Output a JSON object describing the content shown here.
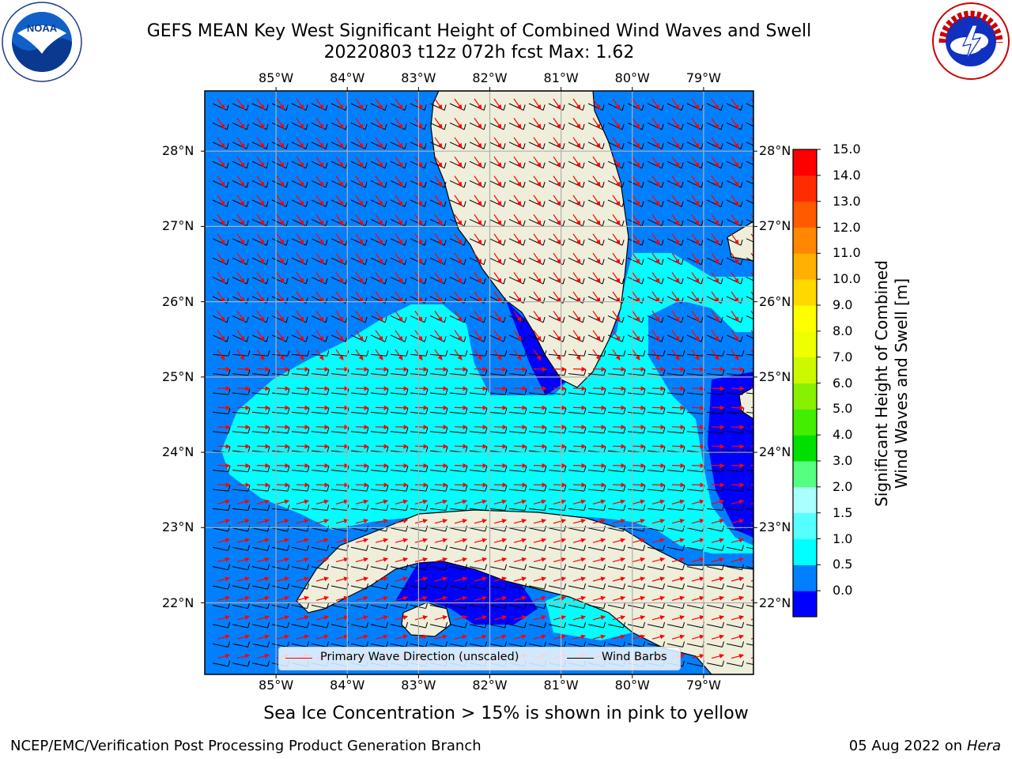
{
  "title": {
    "line1": "GEFS MEAN Key West Significant Height of Combined Wind Waves and Swell",
    "line2": "20220803 t12z 072h fcst   Max: 1.62"
  },
  "logos": {
    "noaa": {
      "text": "NOAA",
      "ring_text": "NATIONAL OCEANIC AND ATMOSPHERIC ADMINISTRATION · U.S. DEPARTMENT OF COMMERCE",
      "icon": "noaa-logo"
    },
    "nws": {
      "ring_text": "NATIONAL WEATHER SERVICE",
      "icon": "nws-logo"
    }
  },
  "map": {
    "lon_labels": [
      "85°W",
      "84°W",
      "83°W",
      "82°W",
      "81°W",
      "80°W",
      "79°W"
    ],
    "lat_labels": [
      "28°N",
      "27°N",
      "26°N",
      "25°N",
      "24°N",
      "23°N",
      "22°N"
    ],
    "lon_range": [
      -86.0,
      -78.3
    ],
    "lat_range": [
      21.05,
      28.8
    ],
    "colors": {
      "water_low": "#0000ff",
      "water_mid": "#0080ff",
      "water_high": "#00ffff",
      "land": "#efeedb",
      "wave_arrow": "#ff0000",
      "wind_barb": "#000000",
      "grid": "#b0b0b0"
    }
  },
  "colorbar": {
    "title_line1": "Significant Height of Combined",
    "title_line2": "Wind Waves and Swell [m]",
    "ticks": [
      "15.0",
      "14.0",
      "13.0",
      "12.0",
      "11.0",
      "10.0",
      "9.0",
      "8.0",
      "7.0",
      "6.0",
      "5.0",
      "4.0",
      "3.0",
      "2.0",
      "1.5",
      "1.0",
      "0.5",
      "0.0"
    ],
    "colors_bottom_to_top": [
      "#0000ff",
      "#0080ff",
      "#00ffff",
      "#55ffff",
      "#aaffff",
      "#55ff80",
      "#00e000",
      "#44ee00",
      "#88f000",
      "#ccf800",
      "#eeff00",
      "#ffff00",
      "#ffd800",
      "#ffb000",
      "#ff8800",
      "#ff5a00",
      "#ff2c00",
      "#ff0000"
    ]
  },
  "legend": {
    "items": [
      {
        "label": "Primary Wave Direction (unscaled)",
        "color": "#ff0000"
      },
      {
        "label": "Wind Barbs",
        "color": "#000000"
      }
    ]
  },
  "note": "Sea Ice Concentration > 15% is shown in pink to yellow",
  "footer": {
    "left": "NCEP/EMC/Verification Post Processing Product Generation Branch",
    "right_date": "05 Aug 2022 on",
    "right_machine": "Hera"
  }
}
